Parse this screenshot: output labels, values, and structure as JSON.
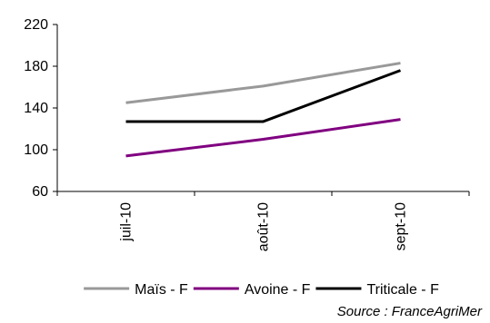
{
  "chart_data": {
    "type": "line",
    "categories": [
      "juil-10",
      "août-10",
      "sept-10"
    ],
    "series": [
      {
        "name": "Maïs - F",
        "values": [
          145,
          161,
          183
        ],
        "color": "#999999"
      },
      {
        "name": "Avoine - F",
        "values": [
          94,
          110,
          129
        ],
        "color": "#800080"
      },
      {
        "name": "Triticale - F",
        "values": [
          127,
          127,
          176
        ],
        "color": "#000000"
      }
    ],
    "ylim": [
      60,
      220
    ],
    "yticks": [
      60,
      100,
      140,
      180,
      220
    ],
    "grid": false,
    "legend_position": "bottom",
    "source": "Source  :  FranceAgriMer"
  }
}
